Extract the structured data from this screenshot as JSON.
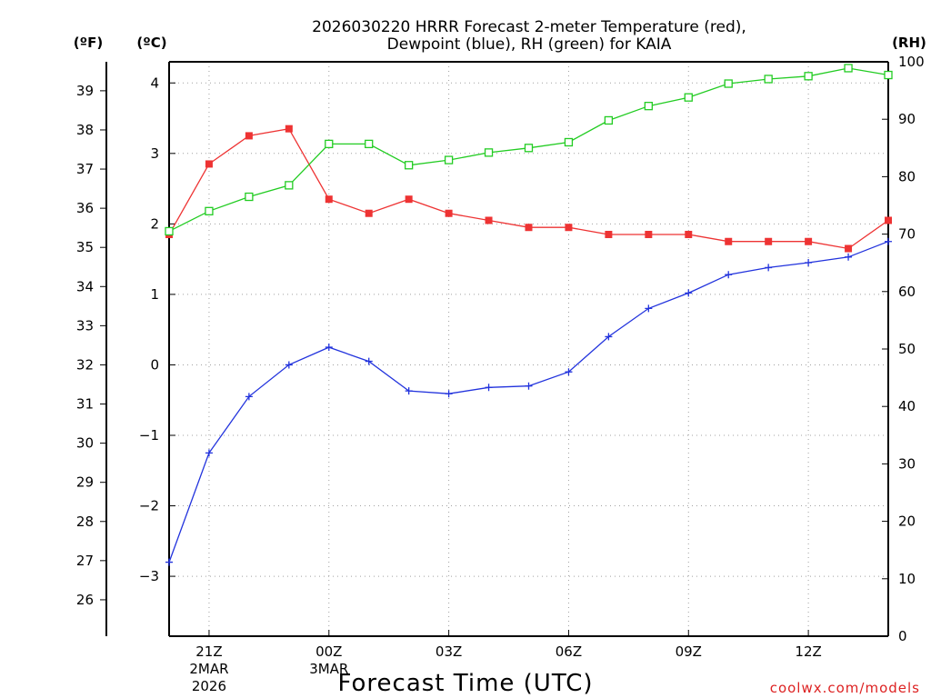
{
  "title_line1": "2026030220 HRRR Forecast 2-meter Temperature (red),",
  "title_line2": "Dewpoint (blue), RH (green) for KAIA",
  "credit": "coolwx.com/models",
  "colors": {
    "temperature": "#ee3333",
    "dewpoint": "#2233dd",
    "rh": "#22cc22",
    "grid": "#a0a0a0",
    "axis": "#000000",
    "credit": "#dd2222"
  },
  "chart_data": {
    "type": "line",
    "title": "2026030220 HRRR Forecast 2-meter Temperature (red), Dewpoint (blue), RH (green) for KAIA",
    "xlabel": "Forecast Time (UTC)",
    "x_hours": [
      0,
      1,
      2,
      3,
      4,
      5,
      6,
      7,
      8,
      9,
      10,
      11,
      12,
      13,
      14,
      15,
      16,
      17,
      18
    ],
    "xlim": [
      0,
      18
    ],
    "x_ticks": [
      {
        "hour": 1,
        "label": "21Z",
        "date_line1": "2MAR",
        "date_line2": "2026"
      },
      {
        "hour": 4,
        "label": "00Z",
        "date_line1": "3MAR",
        "date_line2": ""
      },
      {
        "hour": 7,
        "label": "03Z",
        "date_line1": "",
        "date_line2": ""
      },
      {
        "hour": 10,
        "label": "06Z",
        "date_line1": "",
        "date_line2": ""
      },
      {
        "hour": 13,
        "label": "09Z",
        "date_line1": "",
        "date_line2": ""
      },
      {
        "hour": 16,
        "label": "12Z",
        "date_line1": "",
        "date_line2": ""
      }
    ],
    "y_celsius": {
      "unit_label": "(ºC)",
      "ylim": [
        -3.85,
        4.3
      ],
      "ticks": [
        4,
        3,
        2,
        1,
        0,
        -1,
        -2,
        -3
      ],
      "tick_labels": [
        "4",
        "3",
        "2",
        "1",
        "0",
        "−1",
        "−2",
        "−3"
      ]
    },
    "y_fahrenheit": {
      "unit_label": "(ºF)",
      "ticks": [
        39,
        38,
        37,
        36,
        35,
        34,
        33,
        32,
        31,
        30,
        29,
        28,
        27,
        26
      ],
      "tick_labels": [
        "39",
        "38",
        "37",
        "36",
        "35",
        "34",
        "33",
        "32",
        "31",
        "30",
        "29",
        "28",
        "27",
        "26"
      ]
    },
    "y_rh": {
      "unit_label": "(RH)",
      "ylim": [
        0,
        100
      ],
      "ticks": [
        100,
        90,
        80,
        70,
        60,
        50,
        40,
        30,
        20,
        10,
        0
      ],
      "tick_labels": [
        "100",
        "90",
        "80",
        "70",
        "60",
        "50",
        "40",
        "30",
        "20",
        "10",
        "0"
      ]
    },
    "series": [
      {
        "name": "2-meter Temperature",
        "axis": "celsius",
        "color": "#ee3333",
        "marker": "filled-square",
        "values": [
          1.85,
          2.85,
          3.25,
          3.35,
          2.35,
          2.15,
          2.35,
          2.15,
          2.05,
          1.95,
          1.95,
          1.85,
          1.85,
          1.85,
          1.75,
          1.75,
          1.75,
          1.65,
          2.05
        ]
      },
      {
        "name": "Dewpoint",
        "axis": "celsius",
        "color": "#2233dd",
        "marker": "plus",
        "values": [
          -2.8,
          -1.25,
          -0.45,
          0.0,
          0.25,
          0.05,
          -0.37,
          -0.41,
          -0.32,
          -0.3,
          -0.1,
          0.4,
          0.8,
          1.02,
          1.28,
          1.38,
          1.45,
          1.53,
          1.75
        ]
      },
      {
        "name": "Relative Humidity",
        "axis": "rh",
        "color": "#22cc22",
        "marker": "open-square",
        "values": [
          70.5,
          74,
          76.5,
          78.5,
          85.7,
          85.7,
          82,
          82.9,
          84.2,
          85,
          86,
          89.8,
          92.3,
          93.8,
          96.2,
          97,
          97.5,
          98.9,
          97.7
        ]
      }
    ]
  }
}
